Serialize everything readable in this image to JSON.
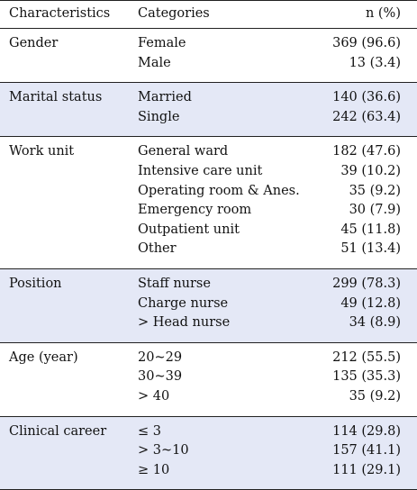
{
  "header": {
    "characteristics": "Characteristics",
    "categories": "Categories",
    "n": "n (%)"
  },
  "groups": [
    {
      "name": "Gender",
      "shade": false,
      "rows": [
        {
          "cat": "Female",
          "n": "369 (96.6)"
        },
        {
          "cat": "Male",
          "n": "13 (3.4)"
        }
      ]
    },
    {
      "name": "Marital status",
      "shade": true,
      "rows": [
        {
          "cat": "Married",
          "n": "140 (36.6)"
        },
        {
          "cat": "Single",
          "n": "242 (63.4)"
        }
      ]
    },
    {
      "name": "Work unit",
      "shade": false,
      "rows": [
        {
          "cat": "General ward",
          "n": "182 (47.6)"
        },
        {
          "cat": "Intensive care unit",
          "n": "39 (10.2)"
        },
        {
          "cat": "Operating room & Anes.",
          "n": "35 (9.2)"
        },
        {
          "cat": "Emergency room",
          "n": "30 (7.9)"
        },
        {
          "cat": "Outpatient unit",
          "n": "45 (11.8)"
        },
        {
          "cat": "Other",
          "n": "51 (13.4)"
        }
      ]
    },
    {
      "name": "Position",
      "shade": true,
      "rows": [
        {
          "cat": "Staff nurse",
          "n": "299 (78.3)"
        },
        {
          "cat": "Charge nurse",
          "n": "49 (12.8)"
        },
        {
          "cat": "> Head nurse",
          "n": "34 (8.9)"
        }
      ]
    },
    {
      "name": "Age (year)",
      "shade": false,
      "rows": [
        {
          "cat": "20~29",
          "n": "212 (55.5)"
        },
        {
          "cat": "30~39",
          "n": "135 (35.3)"
        },
        {
          "cat": "> 40",
          "n": "35 (9.2)"
        }
      ]
    },
    {
      "name": "Clinical career",
      "shade": true,
      "rows": [
        {
          "cat": "≤ 3",
          "n": "114 (29.8)"
        },
        {
          "cat": "> 3~10",
          "n": "157 (41.1)"
        },
        {
          "cat": "≥ 10",
          "n": "111 (29.1)"
        }
      ]
    }
  ]
}
